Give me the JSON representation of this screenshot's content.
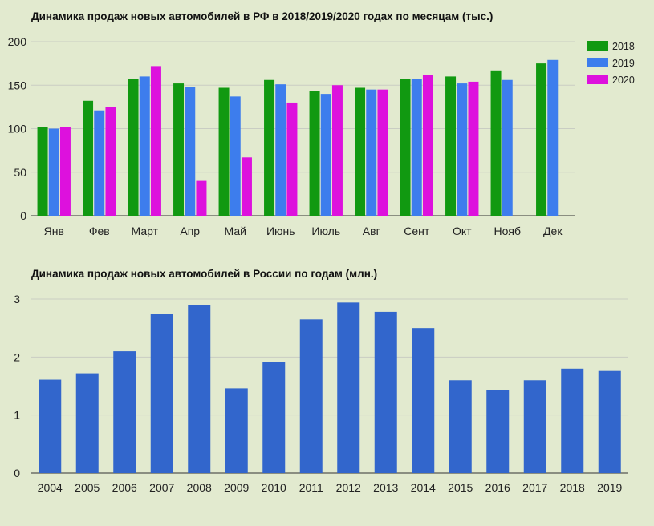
{
  "chart_data": [
    {
      "type": "bar",
      "title": "Динамика продаж новых автомобилей в РФ в 2018/2019/2020 годах по месяцам (тыс.)",
      "xlabel": "",
      "ylabel": "",
      "ylim": [
        0,
        200
      ],
      "yticks": [
        0,
        50,
        100,
        150,
        200
      ],
      "grid": true,
      "legend_position": "top-right",
      "categories": [
        "Янв",
        "Фев",
        "Март",
        "Апр",
        "Май",
        "Июнь",
        "Июль",
        "Авг",
        "Сент",
        "Окт",
        "Нояб",
        "Дек"
      ],
      "series": [
        {
          "name": "2018",
          "color": "#119911",
          "values": [
            102,
            132,
            157,
            152,
            147,
            156,
            143,
            147,
            157,
            160,
            167,
            175
          ]
        },
        {
          "name": "2019",
          "color": "#3d7ded",
          "values": [
            100,
            121,
            160,
            148,
            137,
            151,
            140,
            145,
            157,
            152,
            156,
            179
          ]
        },
        {
          "name": "2020",
          "color": "#dd11dd",
          "values": [
            102,
            125,
            172,
            40,
            67,
            130,
            150,
            145,
            162,
            154,
            null,
            null
          ]
        }
      ]
    },
    {
      "type": "bar",
      "title": "Динамика продаж новых автомобилей в России по годам (млн.)",
      "xlabel": "",
      "ylabel": "",
      "ylim": [
        0,
        3
      ],
      "yticks": [
        0,
        1,
        2,
        3
      ],
      "grid": true,
      "color": "#3266cc",
      "categories": [
        "2004",
        "2005",
        "2006",
        "2007",
        "2008",
        "2009",
        "2010",
        "2011",
        "2012",
        "2013",
        "2014",
        "2015",
        "2016",
        "2017",
        "2018",
        "2019"
      ],
      "values": [
        1.61,
        1.72,
        2.1,
        2.74,
        2.9,
        1.46,
        1.91,
        2.65,
        2.94,
        2.78,
        2.5,
        1.6,
        1.43,
        1.6,
        1.8,
        1.76
      ]
    }
  ]
}
